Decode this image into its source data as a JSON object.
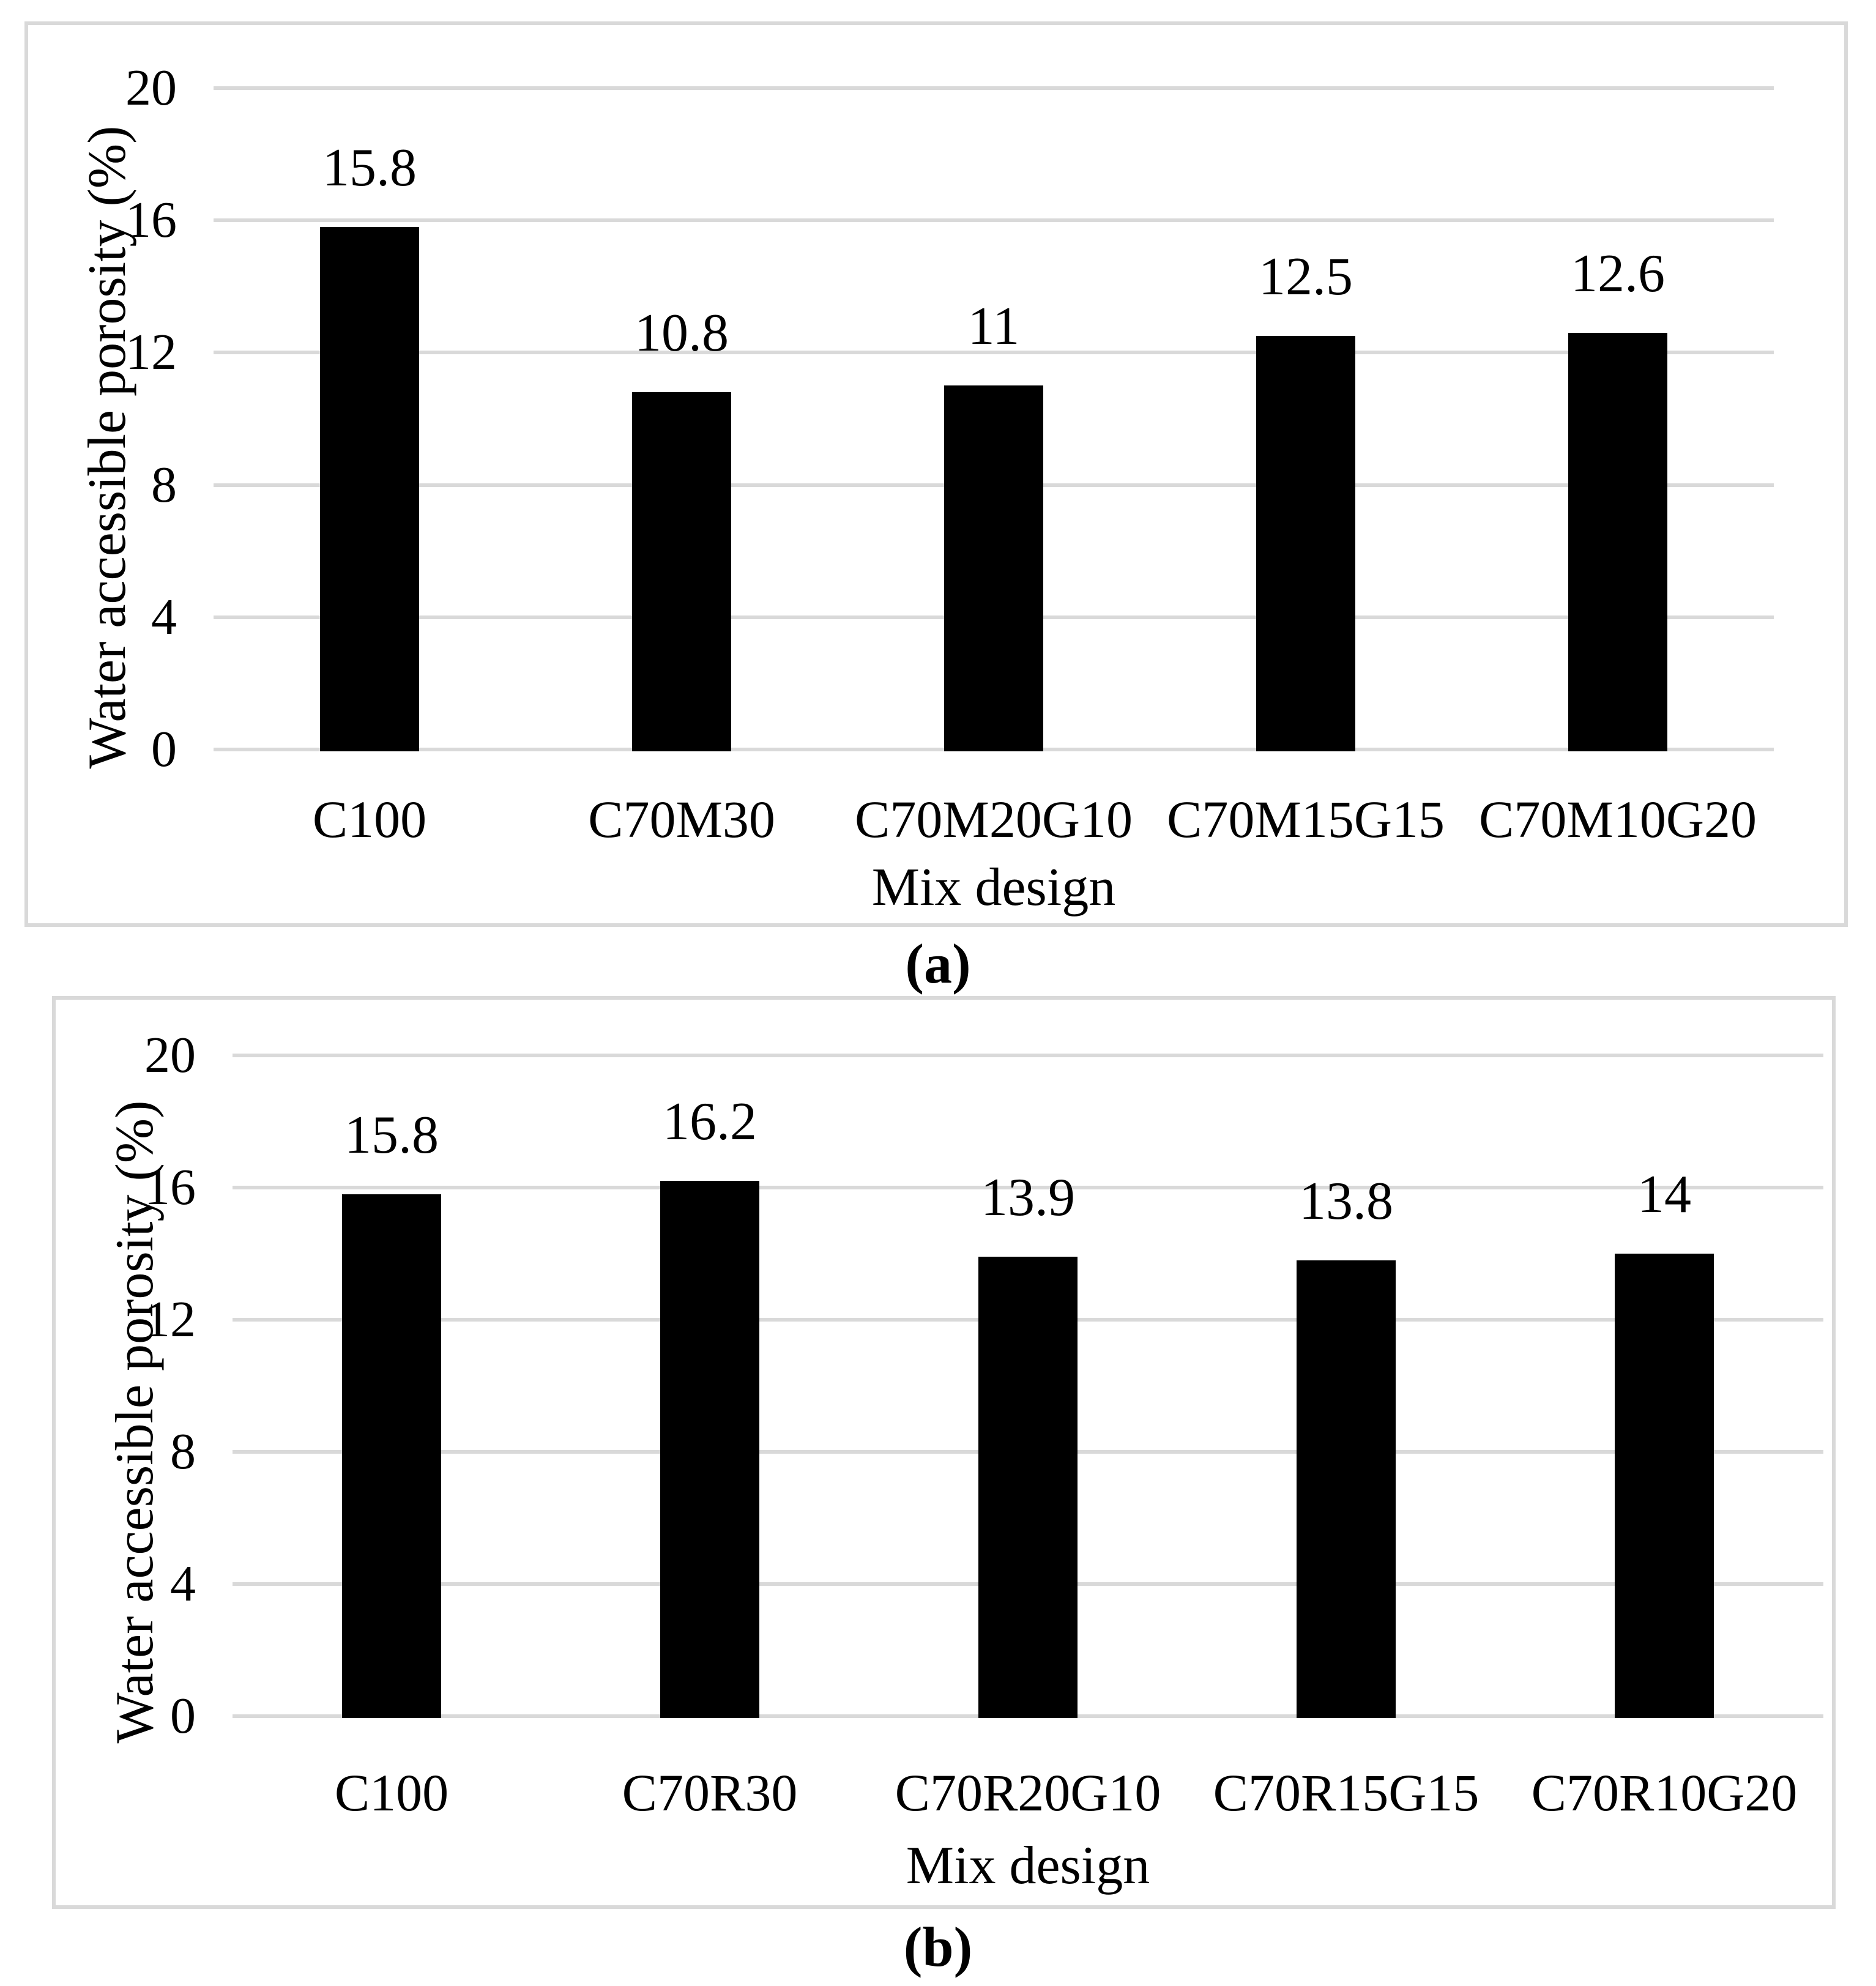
{
  "figure": {
    "captions": [
      "(a)",
      "(b)"
    ]
  },
  "colors": {
    "bar": "#000000",
    "gridline": "#d9d9d9",
    "panel_border": "#d9d9d9",
    "text": "#000000",
    "background": "#ffffff"
  },
  "chart_data": [
    {
      "type": "bar",
      "panel": "a",
      "categories": [
        "C100",
        "C70M30",
        "C70M20G10",
        "C70M15G15",
        "C70M10G20"
      ],
      "values": [
        15.8,
        10.8,
        11,
        12.5,
        12.6
      ],
      "value_labels": [
        "15.8",
        "10.8",
        "11",
        "12.5",
        "12.6"
      ],
      "xlabel": "Mix design",
      "ylabel": "Water accessible porosity (%)",
      "ylim": [
        0,
        20
      ],
      "yticks": [
        0,
        4,
        8,
        12,
        16,
        20
      ],
      "grid": true,
      "legend": "none",
      "bar_color": "#000000",
      "gridline_color": "#d9d9d9"
    },
    {
      "type": "bar",
      "panel": "b",
      "categories": [
        "C100",
        "C70R30",
        "C70R20G10",
        "C70R15G15",
        "C70R10G20"
      ],
      "values": [
        15.8,
        16.2,
        13.9,
        13.8,
        14
      ],
      "value_labels": [
        "15.8",
        "16.2",
        "13.9",
        "13.8",
        "14"
      ],
      "xlabel": "Mix design",
      "ylabel": "Water accessible porosity (%)",
      "ylim": [
        0,
        20
      ],
      "yticks": [
        0,
        4,
        8,
        12,
        16,
        20
      ],
      "grid": true,
      "legend": "none",
      "bar_color": "#000000",
      "gridline_color": "#d9d9d9"
    }
  ]
}
